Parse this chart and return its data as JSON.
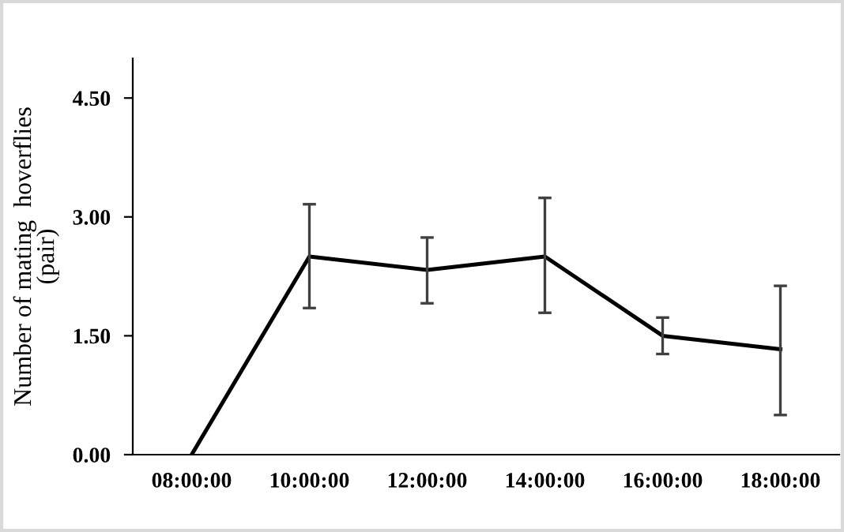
{
  "chart_data": {
    "type": "line",
    "ylabel": "Number of mating  hoverflies\n(pair)",
    "categories": [
      "08:00:00",
      "10:00:00",
      "12:00:00",
      "14:00:00",
      "16:00:00",
      "18:00:00"
    ],
    "series": [
      {
        "color": "#000000",
        "values": [
          0,
          2.5,
          2.33,
          2.5,
          1.5,
          1.33
        ],
        "errors": [
          null,
          [
            1.85,
            3.16
          ],
          [
            1.91,
            2.74
          ],
          [
            1.79,
            3.24
          ],
          [
            1.27,
            1.73
          ],
          [
            0.5,
            2.13
          ]
        ]
      }
    ],
    "ylim": [
      0,
      5
    ],
    "yticks": [
      {
        "value": 0,
        "label": "0.00"
      },
      {
        "value": 1.5,
        "label": "1.50"
      },
      {
        "value": 3,
        "label": "3.00"
      },
      {
        "value": 4.5,
        "label": "4.50"
      }
    ],
    "grid": false,
    "legend": false,
    "marker": "none",
    "line_style": "solid"
  }
}
